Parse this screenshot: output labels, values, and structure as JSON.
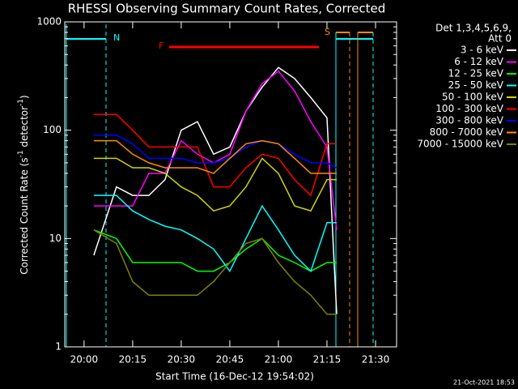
{
  "chart_data": {
    "type": "line",
    "title": "RHESSI Observing Summary Count Rates, Corrected",
    "xlabel": "Start Time (16-Dec-12 19:54:02)",
    "ylabel_parts": [
      "Corrected Count Rate (s",
      "-1",
      " detector",
      "-1",
      ")"
    ],
    "legend_header": [
      "Det 1,3,4,5,6,9,",
      "Att 0"
    ],
    "legend": "upper right outside",
    "annotations": [
      "N",
      "F",
      "S"
    ],
    "footer": "21-Oct-2021 18:53",
    "log_y": true,
    "ylim": [
      1,
      1000
    ],
    "yticks": [
      1,
      10,
      100,
      1000
    ],
    "xlim": [
      1194.033,
      1296.5
    ],
    "xticks": [
      {
        "value": 1200,
        "label": "20:00"
      },
      {
        "value": 1215,
        "label": "20:15"
      },
      {
        "value": 1230,
        "label": "20:30"
      },
      {
        "value": 1245,
        "label": "20:45"
      },
      {
        "value": 1260,
        "label": "21:00"
      },
      {
        "value": 1275,
        "label": "21:15"
      },
      {
        "value": 1290,
        "label": "21:30"
      }
    ],
    "x": [
      1203,
      1210,
      1215,
      1220,
      1225,
      1230,
      1235,
      1240,
      1245,
      1250,
      1255,
      1260,
      1265,
      1270,
      1275,
      1278
    ],
    "series": [
      {
        "name": "3 - 6 keV",
        "color": "#ffffff",
        "values": [
          7,
          30,
          25,
          25,
          35,
          100,
          120,
          60,
          70,
          150,
          250,
          380,
          300,
          200,
          130,
          2
        ]
      },
      {
        "name": "6 - 12 keV",
        "color": "#ff00ff",
        "values": [
          20,
          20,
          20,
          40,
          40,
          80,
          60,
          50,
          60,
          150,
          270,
          350,
          230,
          120,
          70,
          12
        ]
      },
      {
        "name": "12 - 25 keV",
        "color": "#00ff00",
        "values": [
          12,
          10,
          6,
          6,
          6,
          6,
          5,
          5,
          6,
          8,
          10,
          7,
          6,
          5,
          6,
          6
        ]
      },
      {
        "name": "25 - 50 keV",
        "color": "#00ffff",
        "values": [
          25,
          25,
          18,
          15,
          13,
          12,
          10,
          8,
          5,
          10,
          20,
          12,
          7,
          5,
          14,
          14
        ]
      },
      {
        "name": "50 - 100 keV",
        "color": "#d4d400",
        "values": [
          55,
          55,
          45,
          45,
          40,
          30,
          25,
          18,
          20,
          30,
          55,
          40,
          20,
          18,
          35,
          35
        ]
      },
      {
        "name": "100 - 300 keV",
        "color": "#ff0000",
        "values": [
          140,
          140,
          100,
          70,
          70,
          70,
          70,
          30,
          30,
          45,
          60,
          55,
          35,
          25,
          75,
          75
        ]
      },
      {
        "name": "300 - 800 keV",
        "color": "#0000ff",
        "values": [
          90,
          90,
          75,
          55,
          55,
          55,
          50,
          50,
          55,
          70,
          80,
          75,
          60,
          50,
          50,
          45
        ]
      },
      {
        "name": "800 - 7000 keV",
        "color": "#ff8c00",
        "values": [
          80,
          80,
          60,
          50,
          45,
          45,
          45,
          40,
          55,
          75,
          80,
          75,
          55,
          40,
          40,
          40
        ]
      },
      {
        "name": "7000 - 15000 keV",
        "color": "#808000",
        "values": [
          12,
          9,
          4,
          3,
          3,
          3,
          3,
          4,
          6,
          9,
          10,
          6,
          4,
          3,
          2,
          2
        ]
      }
    ]
  }
}
